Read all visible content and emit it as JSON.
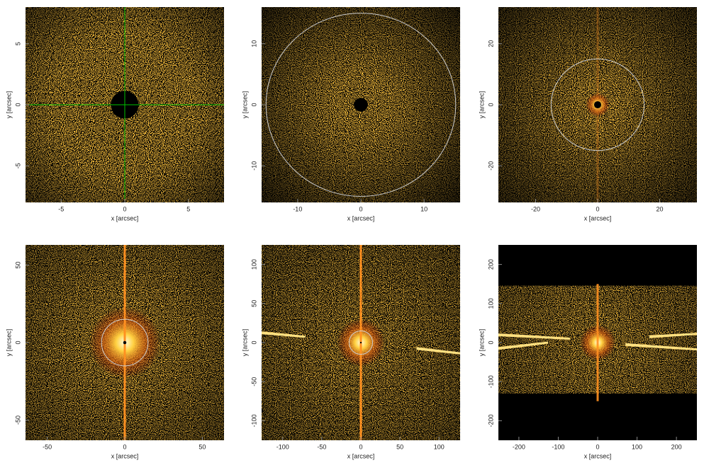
{
  "chart_data": [
    {
      "type": "image",
      "xlabel": "x [arcsec]",
      "ylabel": "y [arcsec]",
      "xlim": [
        -7.8,
        7.8
      ],
      "ylim": [
        -8,
        8
      ],
      "xticks": [
        -5,
        0,
        5
      ],
      "yticks": [
        -5,
        0,
        5
      ],
      "crosshair": [
        0,
        0
      ],
      "crosshair_color": "#00c000"
    },
    {
      "type": "image",
      "xlabel": "x [arcsec]",
      "ylabel": "y [arcsec]",
      "xlim": [
        -15.7,
        15.7
      ],
      "ylim": [
        -16,
        16
      ],
      "xticks": [
        -10,
        0,
        10
      ],
      "yticks": [
        -10,
        0,
        10
      ],
      "circle_radius": 15,
      "circle_color": "#cccccc"
    },
    {
      "type": "image",
      "xlabel": "x [arcsec]",
      "ylabel": "y [arcsec]",
      "xlim": [
        -32,
        32
      ],
      "ylim": [
        -32,
        32
      ],
      "xticks": [
        -20,
        0,
        20
      ],
      "yticks": [
        -20,
        0,
        20
      ],
      "circle_radius": 15,
      "circle_color": "#cccccc"
    },
    {
      "type": "image",
      "xlabel": "x [arcsec]",
      "ylabel": "y [arcsec]",
      "xlim": [
        -64,
        64
      ],
      "ylim": [
        -63,
        63
      ],
      "xticks": [
        -50,
        0,
        50
      ],
      "yticks": [
        -50,
        0,
        50
      ],
      "circle_radius": 15,
      "circle_color": "#cccccc"
    },
    {
      "type": "image",
      "xlabel": "x [arcsec]",
      "ylabel": "y [arcsec]",
      "xlim": [
        -127,
        127
      ],
      "ylim": [
        -125,
        125
      ],
      "xticks": [
        -100,
        -50,
        0,
        50,
        100
      ],
      "yticks": [
        -100,
        -50,
        0,
        50,
        100
      ],
      "circle_radius": 15,
      "circle_color": "#cccccc"
    },
    {
      "type": "image",
      "xlabel": "x [arcsec]",
      "ylabel": "y [arcsec]",
      "xlim": [
        -252,
        252
      ],
      "ylim": [
        -250,
        250
      ],
      "xticks": [
        -200,
        -100,
        0,
        100,
        200
      ],
      "yticks": [
        -200,
        -100,
        0,
        100,
        200
      ]
    }
  ]
}
